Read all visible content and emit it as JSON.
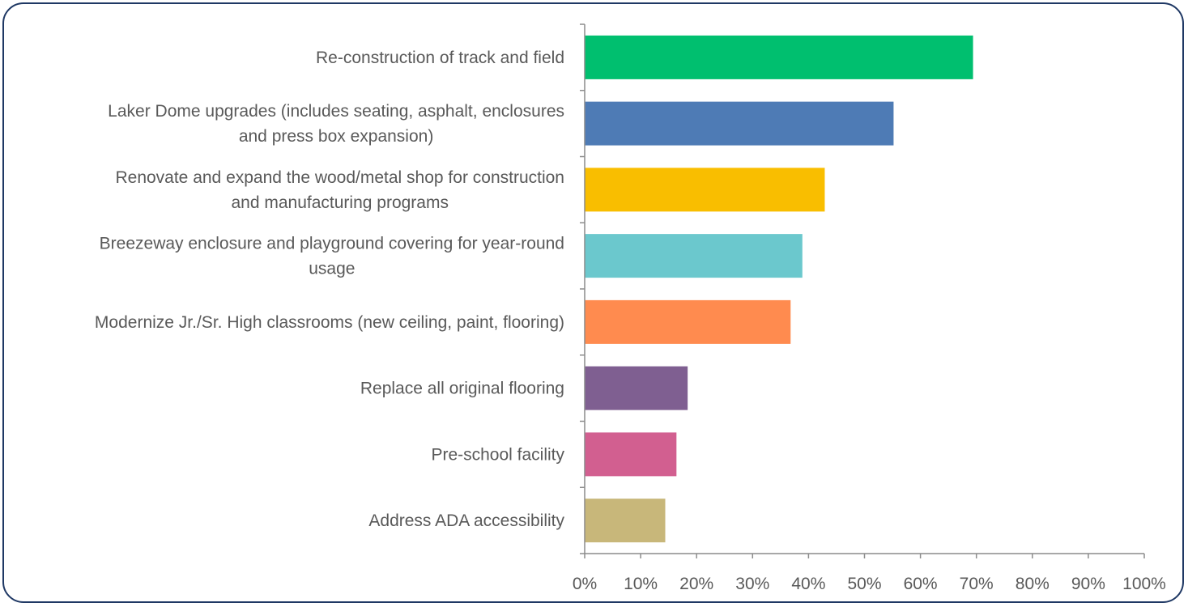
{
  "chart_data": {
    "type": "bar",
    "orientation": "horizontal",
    "categories": [
      [
        "Re-construction of track and field"
      ],
      [
        "Laker Dome upgrades (includes seating, asphalt, enclosures",
        "and press box expansion)"
      ],
      [
        "Renovate and expand the wood/metal shop for construction",
        "and manufacturing programs"
      ],
      [
        "Breezeway enclosure and playground covering for year-round",
        "usage"
      ],
      [
        "Modernize Jr./Sr. High classrooms (new ceiling, paint, flooring)"
      ],
      [
        "Replace all original flooring"
      ],
      [
        "Pre-school facility"
      ],
      [
        "Address ADA accessibility"
      ]
    ],
    "values": [
      69.4,
      55.2,
      42.9,
      38.9,
      36.8,
      18.4,
      16.4,
      14.4
    ],
    "colors": [
      "#00bf6f",
      "#4e7bb5",
      "#f9be00",
      "#6bc8cd",
      "#ff8b4f",
      "#7f5f91",
      "#d25f90",
      "#c8b77a"
    ],
    "xlim": [
      0,
      100
    ],
    "xticks": [
      "0%",
      "10%",
      "20%",
      "30%",
      "40%",
      "50%",
      "60%",
      "70%",
      "80%",
      "90%",
      "100%"
    ],
    "title": "",
    "xlabel": "",
    "ylabel": "",
    "grid": false,
    "legend": "none"
  }
}
